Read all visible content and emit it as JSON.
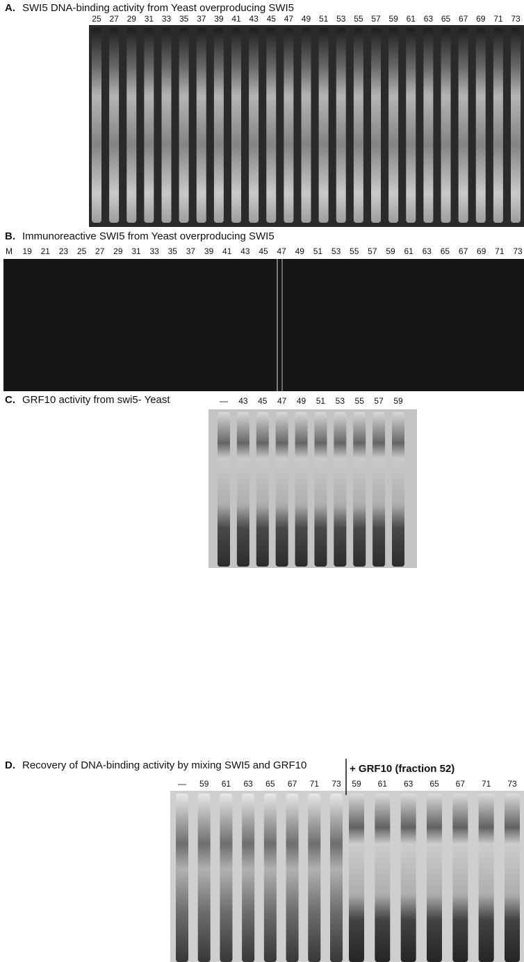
{
  "panels": [
    {
      "label": "A.",
      "title": "SWI5 DNA-binding activity from Yeast overproducing SWI5",
      "lanes": [
        "25",
        "27",
        "29",
        "31",
        "33",
        "35",
        "37",
        "39",
        "41",
        "43",
        "45",
        "47",
        "49",
        "51",
        "53",
        "55",
        "57",
        "59",
        "61",
        "63",
        "65",
        "67",
        "69",
        "71",
        "73"
      ]
    },
    {
      "label": "B.",
      "title": "Immunoreactive SWI5 from Yeast overproducing SWI5",
      "lanes": [
        "M",
        "19",
        "21",
        "23",
        "25",
        "27",
        "29",
        "31",
        "33",
        "35",
        "37",
        "39",
        "41",
        "43",
        "45",
        "47",
        "49",
        "51",
        "53",
        "55",
        "57",
        "59",
        "61",
        "63",
        "65",
        "67",
        "69",
        "71",
        "73"
      ]
    },
    {
      "label": "C.",
      "title": "GRF10 activity from swi5- Yeast",
      "lanes": [
        "—",
        "43",
        "45",
        "47",
        "49",
        "51",
        "53",
        "55",
        "57",
        "59"
      ]
    },
    {
      "label": "D.",
      "title": "Recovery of DNA-binding activity by mixing SWI5 and GRF10",
      "lanes": [
        "—",
        "59",
        "61",
        "63",
        "65",
        "67",
        "71",
        "73"
      ],
      "group_label": "+ GRF10 (fraction 52)",
      "group_lanes": [
        "59",
        "61",
        "63",
        "65",
        "67",
        "71",
        "73"
      ]
    }
  ]
}
